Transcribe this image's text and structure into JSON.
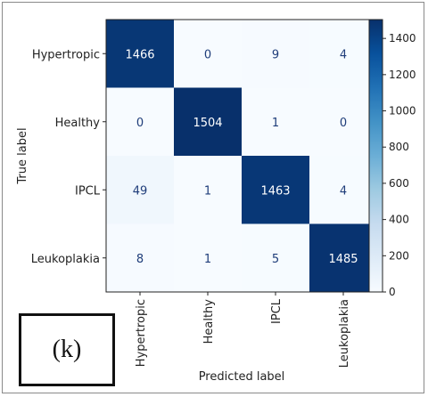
{
  "chart_data": {
    "type": "heatmap",
    "title": "",
    "xlabel": "Predicted label",
    "ylabel": "True label",
    "x_categories": [
      "Hypertropic",
      "Healthy",
      "IPCL",
      "Leukoplakia"
    ],
    "y_categories": [
      "Hypertropic",
      "Healthy",
      "IPCL",
      "Leukoplakia"
    ],
    "matrix": [
      [
        1466,
        0,
        9,
        4
      ],
      [
        0,
        1504,
        1,
        0
      ],
      [
        49,
        1,
        1463,
        4
      ],
      [
        8,
        1,
        5,
        1485
      ]
    ],
    "colormap": "Blues",
    "value_range": [
      0,
      1504
    ],
    "colorbar_ticks": [
      0,
      200,
      400,
      600,
      800,
      1000,
      1200,
      1400
    ],
    "colors": {
      "low": "#f7fbff",
      "high": "#08306b",
      "text_dark": "#1f3d7a",
      "text_light": "#ffffff"
    }
  },
  "panel_label": "(k)"
}
